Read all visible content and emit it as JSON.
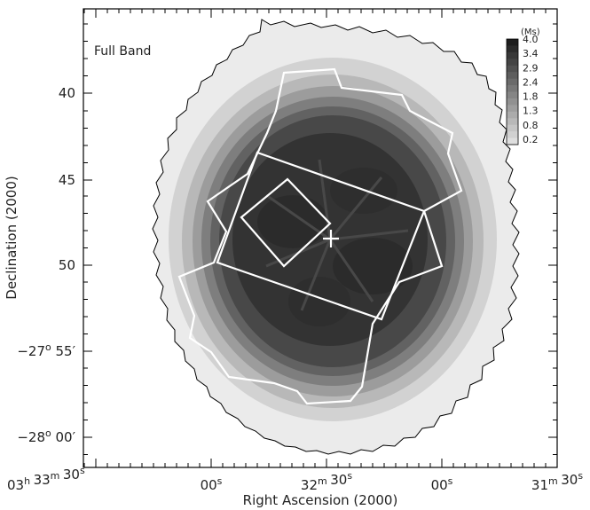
{
  "chart_data": {
    "type": "heatmap",
    "panel_label": "Full Band",
    "xlabel": "Right Ascension (2000)",
    "ylabel": "Declination (2000)",
    "x_ticks": [
      {
        "h": "03",
        "m": "33",
        "s": "30"
      },
      {
        "h": "",
        "m": "",
        "s": "00"
      },
      {
        "h": "",
        "m": "32",
        "s": "30"
      },
      {
        "h": "",
        "m": "",
        "s": "00"
      },
      {
        "h": "",
        "m": "31",
        "s": "30"
      }
    ],
    "y_ticks": [
      {
        "deg": "",
        "min": "40"
      },
      {
        "deg": "",
        "min": "45"
      },
      {
        "deg": "",
        "min": "50"
      },
      {
        "deg": "−27",
        "min": "55′"
      },
      {
        "deg": "−28",
        "min": "00′"
      }
    ],
    "colorbar": {
      "unit": "(Ms)",
      "levels": [
        4.0,
        3.4,
        2.9,
        2.4,
        1.8,
        1.3,
        0.8,
        0.2
      ],
      "labels": [
        "4.0",
        "3.4",
        "2.9",
        "2.4",
        "1.8",
        "1.3",
        "0.8",
        "0.2"
      ]
    },
    "exposure_max_ms": 4.0,
    "grid": false
  }
}
